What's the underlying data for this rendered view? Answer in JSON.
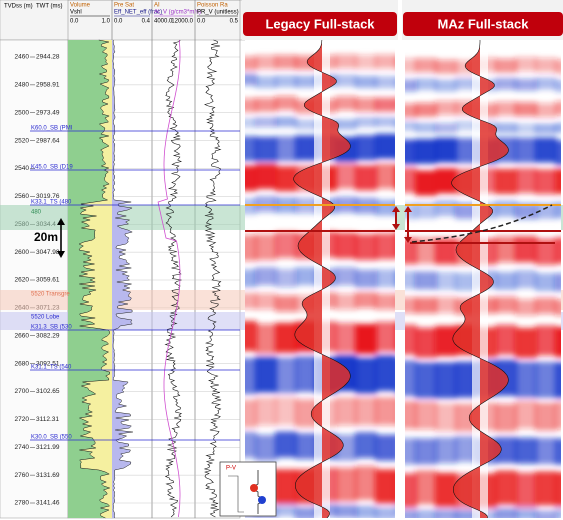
{
  "header": {
    "tvdss": "TVDss (m)",
    "twt": "TWT (ms)"
  },
  "tracks": [
    {
      "title": "Volume",
      "curve": "Vshl",
      "min": "0.0",
      "max": "1.0"
    },
    {
      "title": "Pre Sat",
      "curve": "Eff_NET_eff (frac)",
      "min": "0.0",
      "max": "0.4"
    },
    {
      "title": "AI",
      "curve": "AI_V (g/cm3*m/s)",
      "min": "4000.0",
      "max": "12000.0"
    },
    {
      "title": "Poisson Ra",
      "curve": "PR_V (unitless)",
      "min": "0.0",
      "max": "0.5"
    }
  ],
  "depths": [
    {
      "tvdss": "2460",
      "twt": "2944.28"
    },
    {
      "tvdss": "2480",
      "twt": "2958.91"
    },
    {
      "tvdss": "2500",
      "twt": "2973.49"
    },
    {
      "tvdss": "2520",
      "twt": "2987.64"
    },
    {
      "tvdss": "2540"
    },
    {
      "tvdss": "2560",
      "twt": "3019.76"
    },
    {
      "tvdss": "2580",
      "twt": "3034.4"
    },
    {
      "tvdss": "2600",
      "twt": "3047.98"
    },
    {
      "tvdss": "2620",
      "twt": "3059.61"
    },
    {
      "tvdss": "2640",
      "twt": "3071.23"
    },
    {
      "tvdss": "2660",
      "twt": "3082.29"
    },
    {
      "tvdss": "2680",
      "twt": "3092.51"
    },
    {
      "tvdss": "2700",
      "twt": "3102.65"
    },
    {
      "tvdss": "2720",
      "twt": "3112.31"
    },
    {
      "tvdss": "2740",
      "twt": "3121.99"
    },
    {
      "tvdss": "2760",
      "twt": "3131.69"
    },
    {
      "tvdss": "2780",
      "twt": "3141.46"
    }
  ],
  "horizons": [
    "K60.0_SB (PMI",
    "K45.0_SB (D19",
    "K33.1_TS (480",
    "480",
    "5520 Transgre",
    "5520 Lobe",
    "K31.3_SB (530",
    "K31.1_TS (540",
    "K30.0_SB (550"
  ],
  "panels": [
    "Legacy Full-stack",
    "MAz Full-stack"
  ],
  "scale_label": "20m",
  "inset_label": "P-V"
}
